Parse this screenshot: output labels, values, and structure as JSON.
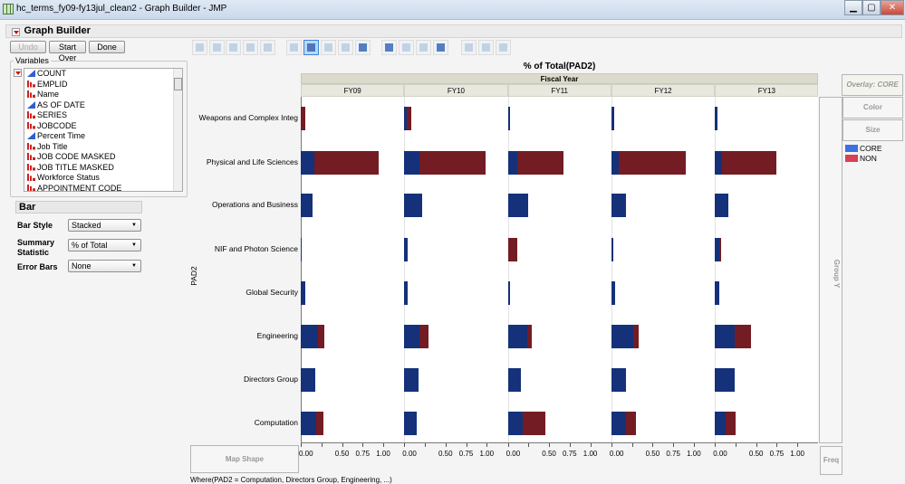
{
  "window": {
    "title": "hc_terms_fy09-fy13jul_clean2 - Graph Builder - JMP",
    "minimize": "▁",
    "maximize": "▢",
    "close": "✕"
  },
  "platform": {
    "title": "Graph Builder",
    "undo": "Undo",
    "start_over": "Start Over",
    "done": "Done"
  },
  "variables": {
    "label": "Variables",
    "items": [
      {
        "name": "COUNT",
        "type": "continuous"
      },
      {
        "name": "EMPLID",
        "type": "nominal"
      },
      {
        "name": "Name",
        "type": "nominal"
      },
      {
        "name": "AS OF DATE",
        "type": "continuous"
      },
      {
        "name": "SERIES",
        "type": "nominal"
      },
      {
        "name": "JOBCODE",
        "type": "nominal"
      },
      {
        "name": "Percent Time",
        "type": "continuous"
      },
      {
        "name": "Job Title",
        "type": "nominal"
      },
      {
        "name": "JOB CODE MASKED",
        "type": "nominal"
      },
      {
        "name": "JOB TITLE MASKED",
        "type": "nominal"
      },
      {
        "name": "Workforce Status",
        "type": "nominal"
      },
      {
        "name": "APPOINTMENT CODE",
        "type": "nominal"
      }
    ]
  },
  "bar_panel": {
    "title": "Bar",
    "bar_style_label": "Bar Style",
    "bar_style": "Stacked",
    "summary_label_1": "Summary",
    "summary_label_2": "Statistic",
    "summary": "% of Total",
    "error_bars_label": "Error Bars",
    "error_bars": "None"
  },
  "toolbar": {
    "icons": [
      "points",
      "smoother",
      "line-of-fit",
      "ellipse",
      "contour",
      "line",
      "bar",
      "area",
      "box-plot",
      "histogram",
      "heatmap",
      "pie",
      "treemap",
      "mosaic",
      "caption-box",
      "formula",
      "map-shapes"
    ],
    "selected": "bar"
  },
  "zones": {
    "group_y": "Group Y",
    "freq": "Freq",
    "map_shape": "Map Shape",
    "overlay": "Overlay: CORE",
    "color": "Color",
    "size": "Size"
  },
  "where_clause": "Where(PAD2 = Computation, Directors Group, Engineering, ...)",
  "chart_data": {
    "type": "bar",
    "orientation": "horizontal",
    "stacked": true,
    "title": "% of Total(PAD2)",
    "group_x_label": "Fiscal Year",
    "ylabel": "PAD2",
    "panels": [
      "FY09",
      "FY10",
      "FY11",
      "FY12",
      "FY13"
    ],
    "categories": [
      "Weapons and Complex Integ",
      "Physical and Life Sciences",
      "Operations and Business",
      "NIF and Photon Science",
      "Global Security",
      "Engineering",
      "Directors Group",
      "Computation"
    ],
    "xlim": [
      0,
      1.25
    ],
    "xticks": [
      0,
      0.25,
      0.5,
      0.75,
      1.0
    ],
    "xtick_labels": [
      "0.00",
      "",
      "0.50",
      "0.75",
      "1.00"
    ],
    "legend": {
      "position": "right",
      "entries": [
        {
          "name": "CORE",
          "color": "#3c6fe0"
        },
        {
          "name": "NON",
          "color": "#d84055"
        }
      ]
    },
    "bar_colors": {
      "CORE": "#14317a",
      "NON": "#731c24"
    },
    "series": [
      {
        "name": "CORE",
        "values": {
          "FY09": [
            0.0,
            0.16,
            0.14,
            0.01,
            0.05,
            0.21,
            0.18,
            0.19
          ],
          "FY10": [
            0.03,
            0.18,
            0.22,
            0.04,
            0.04,
            0.18,
            0.17,
            0.15
          ],
          "FY11": [
            0.03,
            0.11,
            0.25,
            0.0,
            0.03,
            0.24,
            0.16,
            0.18
          ],
          "FY12": [
            0.03,
            0.09,
            0.18,
            0.02,
            0.05,
            0.27,
            0.18,
            0.18
          ],
          "FY13": [
            0.03,
            0.09,
            0.16,
            0.05,
            0.05,
            0.24,
            0.24,
            0.13
          ]
        }
      },
      {
        "name": "NON",
        "values": {
          "FY09": [
            0.05,
            0.78,
            0,
            0,
            0,
            0.08,
            0,
            0.09
          ],
          "FY10": [
            0.06,
            0.81,
            0,
            0,
            0,
            0.11,
            0,
            0
          ],
          "FY11": [
            0,
            0.57,
            0,
            0.11,
            0,
            0.05,
            0,
            0.27
          ],
          "FY12": [
            0,
            0.81,
            0,
            0,
            0,
            0.06,
            0,
            0.12
          ],
          "FY13": [
            0,
            0.65,
            0,
            0.03,
            0,
            0.2,
            0,
            0.12
          ]
        }
      }
    ]
  }
}
